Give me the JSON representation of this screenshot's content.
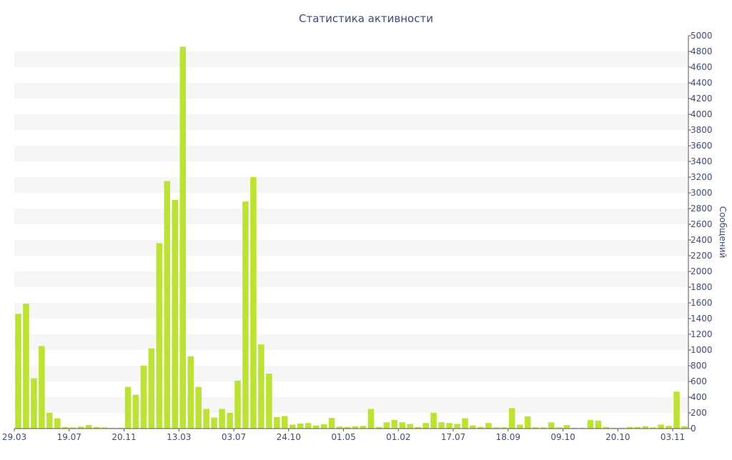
{
  "chart_data": {
    "type": "bar",
    "title": "Статистика активности",
    "ylabel": "Сообщений",
    "xlabel": "",
    "ylim": [
      0,
      5000
    ],
    "ytick_step": 200,
    "grid": "horizontal bands",
    "legend": "none",
    "y_axis_position": "right",
    "colors": {
      "bar": "#bce234",
      "bar_edge": "#a9cc22",
      "band": "#f6f6f6",
      "axis": "#555555",
      "text": "#3e4a7a"
    },
    "x_tick_labels": [
      {
        "index": 0,
        "label": "29.03"
      },
      {
        "index": 7,
        "label": "19.07"
      },
      {
        "index": 14,
        "label": "20.11"
      },
      {
        "index": 21,
        "label": "13.03"
      },
      {
        "index": 28,
        "label": "03.07"
      },
      {
        "index": 35,
        "label": "24.10"
      },
      {
        "index": 42,
        "label": "01.05"
      },
      {
        "index": 49,
        "label": "01.02"
      },
      {
        "index": 56,
        "label": "17.07"
      },
      {
        "index": 63,
        "label": "18.09"
      },
      {
        "index": 70,
        "label": "09.10"
      },
      {
        "index": 77,
        "label": "20.10"
      },
      {
        "index": 84,
        "label": "03.11"
      }
    ],
    "values": [
      1460,
      1590,
      640,
      1050,
      200,
      130,
      20,
      15,
      25,
      45,
      20,
      15,
      10,
      10,
      530,
      430,
      800,
      1020,
      2360,
      3150,
      2910,
      4860,
      920,
      530,
      250,
      140,
      250,
      200,
      610,
      2890,
      3200,
      1070,
      700,
      145,
      160,
      50,
      65,
      70,
      40,
      55,
      135,
      25,
      20,
      30,
      35,
      250,
      20,
      80,
      110,
      80,
      60,
      20,
      70,
      200,
      80,
      70,
      60,
      130,
      40,
      20,
      70,
      15,
      15,
      260,
      50,
      155,
      15,
      15,
      80,
      15,
      45,
      10,
      10,
      110,
      100,
      20,
      10,
      10,
      20,
      20,
      30,
      15,
      50,
      35,
      470,
      30
    ]
  }
}
